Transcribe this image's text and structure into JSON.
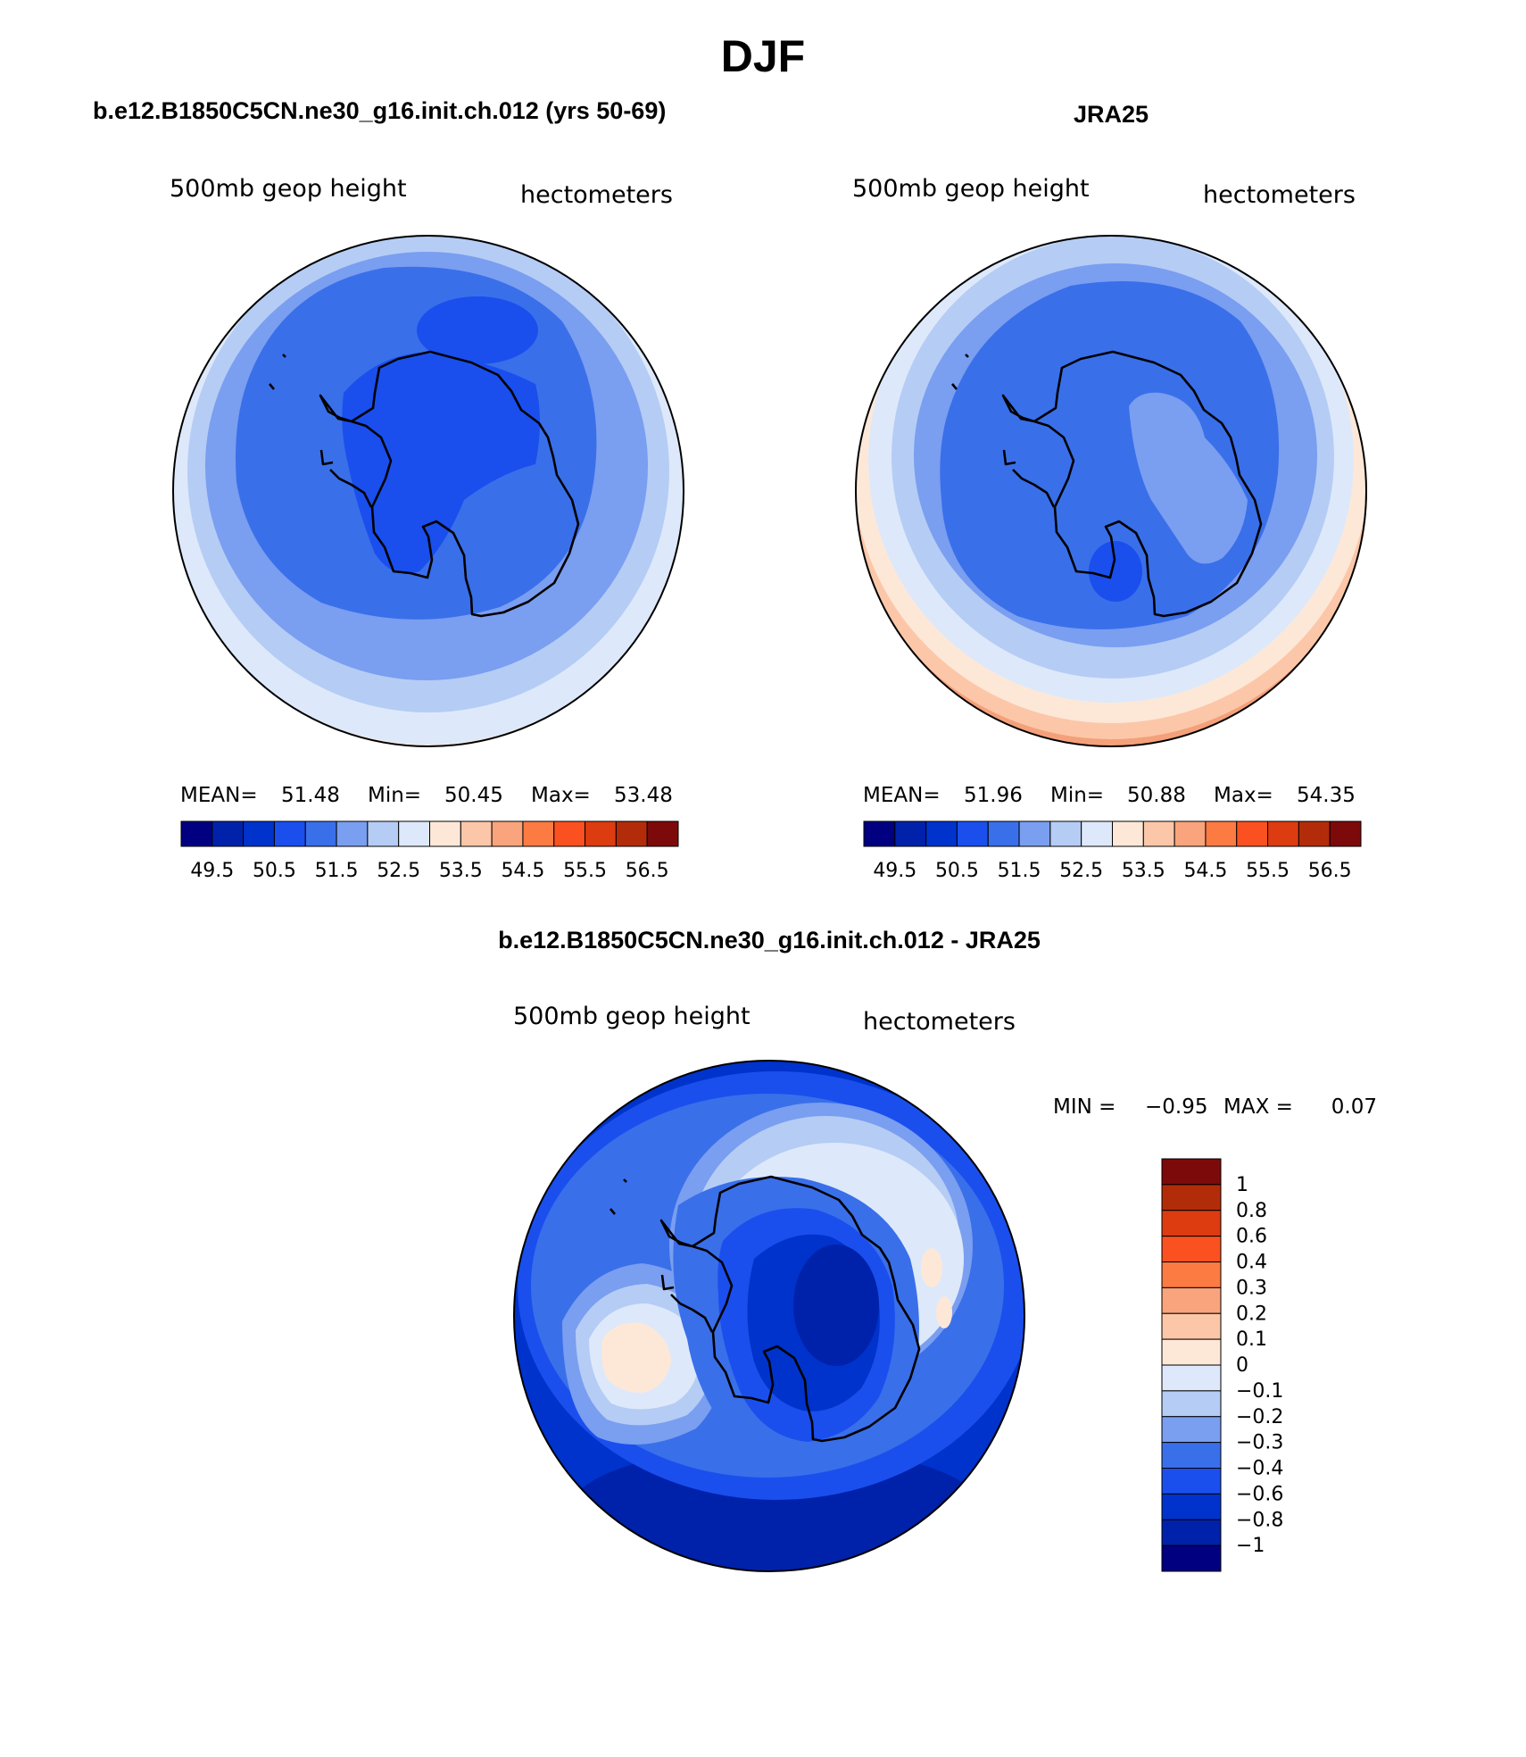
{
  "season": "DJF",
  "panels": {
    "model": {
      "title": "b.e12.B1850C5CN.ne30_g16.init.ch.012 (yrs 50-69)",
      "left_label": "500mb geop height",
      "right_label": "hectometers",
      "stats": {
        "mean_label": "MEAN=",
        "mean": "51.48",
        "min_label": "Min=",
        "min": "50.45",
        "max_label": "Max=",
        "max": "53.48"
      }
    },
    "obs": {
      "title": "JRA25",
      "left_label": "500mb geop height",
      "right_label": "hectometers",
      "stats": {
        "mean_label": "MEAN=",
        "mean": "51.96",
        "min_label": "Min=",
        "min": "50.88",
        "max_label": "Max=",
        "max": "54.35"
      }
    },
    "diff": {
      "title": "b.e12.B1850C5CN.ne30_g16.init.ch.012 - JRA25",
      "left_label": "500mb geop height",
      "right_label": "hectometers",
      "stats": {
        "min_label": "MIN =",
        "min": "−0.95",
        "max_label": "MAX =",
        "max": "0.07"
      }
    }
  },
  "colorbars": {
    "abs": {
      "colors": [
        "#000080",
        "#0022aa",
        "#0033cc",
        "#1a4fee",
        "#3a6fea",
        "#7a9ef0",
        "#b5ccf5",
        "#dde9fa",
        "#fde8d8",
        "#fcc7a8",
        "#f9a47c",
        "#fb7b43",
        "#fb5120",
        "#dd3b10",
        "#b32c0a",
        "#7d0a0a"
      ],
      "tick_labels": [
        "49.5",
        "50.5",
        "51.5",
        "52.5",
        "53.5",
        "54.5",
        "55.5",
        "56.5"
      ]
    },
    "diff": {
      "colors": [
        "#7d0a0a",
        "#b32c0a",
        "#dd3b10",
        "#fb5120",
        "#fb7b43",
        "#f9a47c",
        "#fcc7a8",
        "#fde8d8",
        "#dde9fa",
        "#b5ccf5",
        "#7a9ef0",
        "#3a6fea",
        "#1a4fee",
        "#0033cc",
        "#0022aa",
        "#000080"
      ],
      "tick_labels": [
        "1",
        "0.8",
        "0.6",
        "0.4",
        "0.3",
        "0.2",
        "0.1",
        "0",
        "−0.1",
        "−0.2",
        "−0.3",
        "−0.4",
        "−0.6",
        "−0.8",
        "−1"
      ]
    }
  },
  "colors": {
    "map_bg": "#3a6fea",
    "coast": "#000000"
  }
}
